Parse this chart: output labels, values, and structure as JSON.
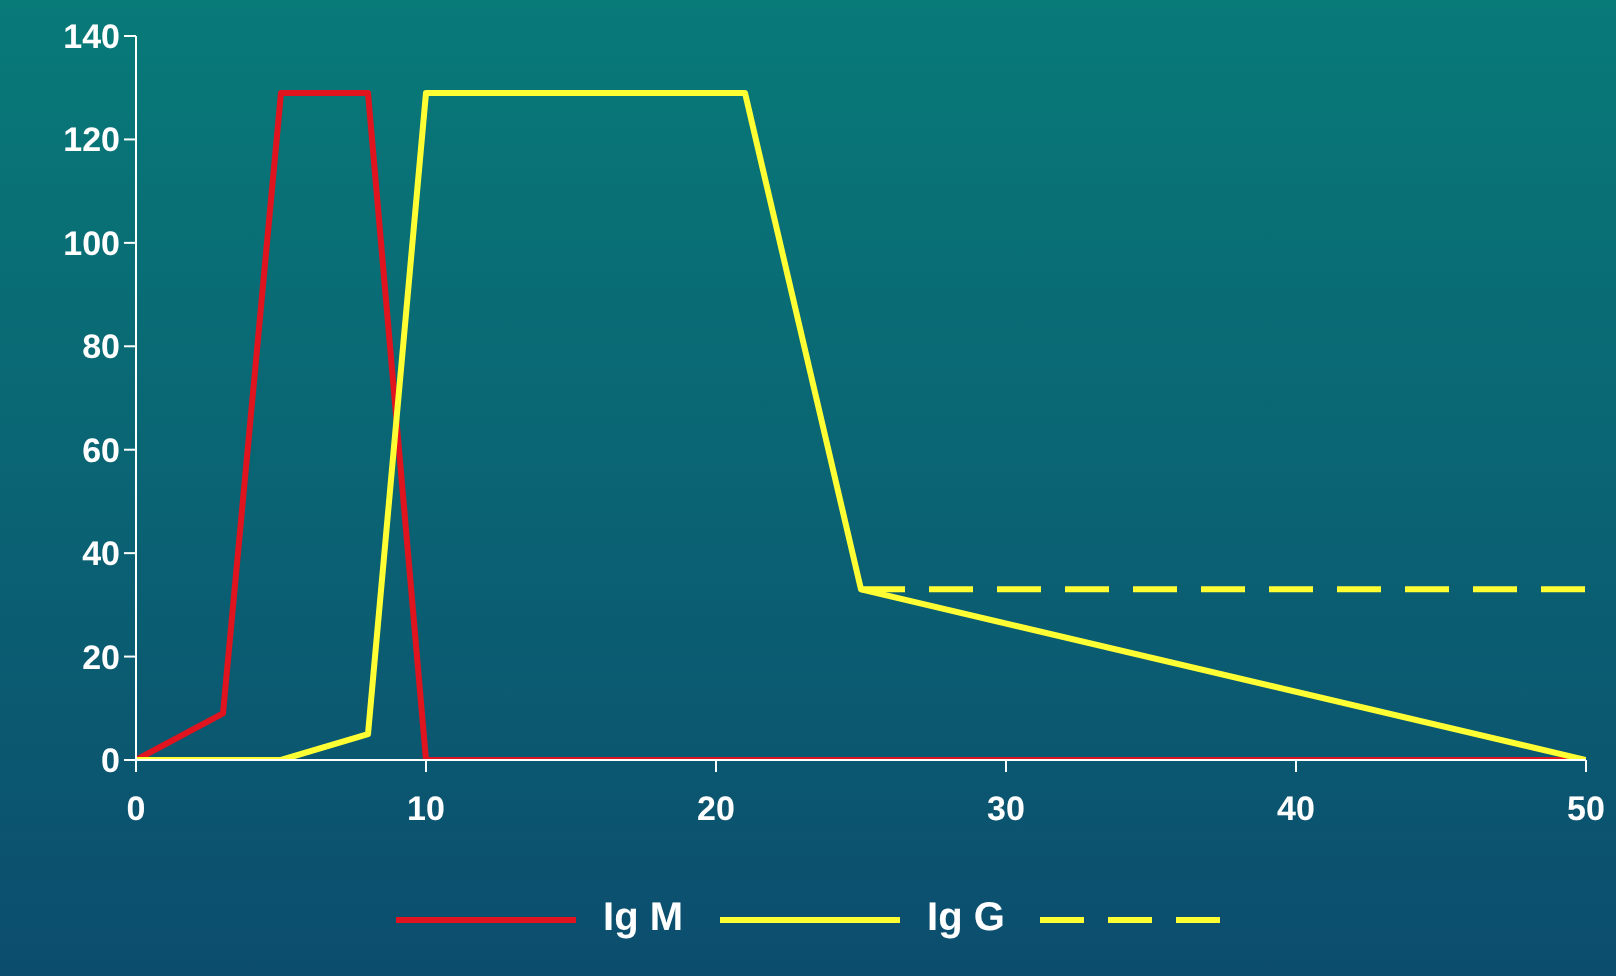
{
  "chart_data": {
    "type": "line",
    "xlim": [
      0,
      50
    ],
    "xticks": [
      0,
      10,
      20,
      30,
      40,
      50
    ],
    "ylim": [
      0,
      140
    ],
    "yticks": [
      0,
      20,
      40,
      60,
      80,
      100,
      120,
      140
    ],
    "grid": false,
    "legend": "bottom",
    "marker": "none",
    "series": [
      {
        "name": "Ig M",
        "color": "#e0141e",
        "x": [
          0,
          3,
          5,
          8,
          10,
          50
        ],
        "values": [
          0,
          9,
          129,
          129,
          0,
          0
        ]
      },
      {
        "name": "Ig G",
        "color": "#ffff33",
        "x": [
          0,
          5,
          8,
          10,
          21,
          25,
          50
        ],
        "values": [
          0,
          0,
          5,
          129,
          129,
          33,
          0
        ]
      },
      {
        "color": "#ffff33",
        "line_style": "dashed",
        "x": [
          25,
          50
        ],
        "values": [
          33,
          33
        ]
      }
    ]
  }
}
